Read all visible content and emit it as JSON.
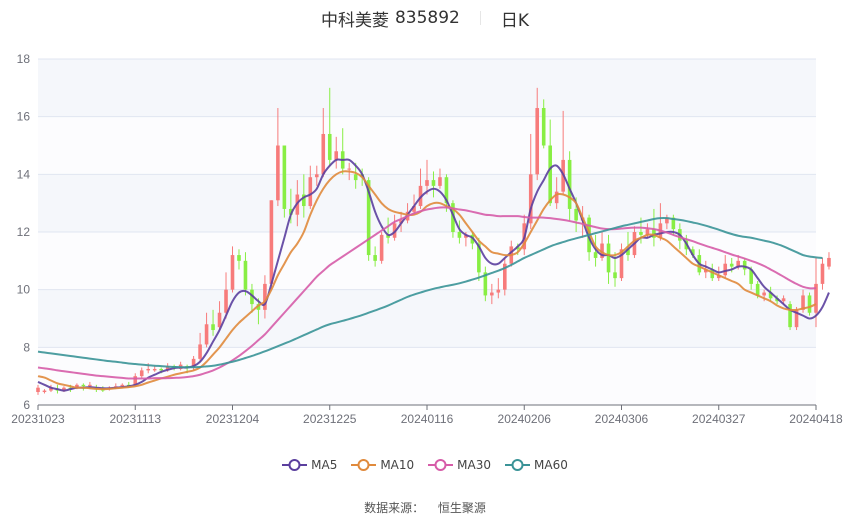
{
  "header": {
    "stock_name": "中科美菱",
    "stock_code": "835892",
    "period": "日K"
  },
  "legend": [
    {
      "name": "MA5",
      "color": "#5b3f9e"
    },
    {
      "name": "MA10",
      "color": "#e08a3c"
    },
    {
      "name": "MA30",
      "color": "#d65ca8"
    },
    {
      "name": "MA60",
      "color": "#3a9397"
    }
  ],
  "source": {
    "label": "数据来源：",
    "value": "恒生聚源"
  },
  "colors": {
    "up": "#f77b7b",
    "down": "#88ee44",
    "grid": "#e0e6f1",
    "band": "#f5f7fb",
    "axis": "#6e7079"
  },
  "chart_data": {
    "type": "candlestick",
    "title": "中科美菱 835892 日K",
    "xlabel": "",
    "ylabel": "",
    "ylim": [
      6,
      18
    ],
    "yticks": [
      6,
      8,
      10,
      12,
      14,
      16,
      18
    ],
    "xticks": [
      "20231023",
      "20231113",
      "20231204",
      "20231225",
      "20240116",
      "20240206",
      "20240306",
      "20240327",
      "20240418"
    ],
    "xtick_index": [
      0,
      15,
      30,
      45,
      60,
      75,
      90,
      105,
      120
    ],
    "grid": true,
    "legend_position": "bottom",
    "candles": [
      [
        6.45,
        6.6,
        6.35,
        6.7
      ],
      [
        6.45,
        6.5,
        6.4,
        6.55
      ],
      [
        6.5,
        6.6,
        6.45,
        6.7
      ],
      [
        6.55,
        6.5,
        6.4,
        6.7
      ],
      [
        6.5,
        6.6,
        6.45,
        6.65
      ],
      [
        6.6,
        6.55,
        6.45,
        6.7
      ],
      [
        6.6,
        6.7,
        6.55,
        6.75
      ],
      [
        6.7,
        6.65,
        6.5,
        6.75
      ],
      [
        6.65,
        6.7,
        6.55,
        6.8
      ],
      [
        6.6,
        6.55,
        6.45,
        6.7
      ],
      [
        6.55,
        6.5,
        6.45,
        6.65
      ],
      [
        6.55,
        6.6,
        6.5,
        6.65
      ],
      [
        6.6,
        6.65,
        6.55,
        6.75
      ],
      [
        6.65,
        6.7,
        6.6,
        6.75
      ],
      [
        6.7,
        6.65,
        6.6,
        6.8
      ],
      [
        6.7,
        7.0,
        6.65,
        7.1
      ],
      [
        7.0,
        7.2,
        6.95,
        7.3
      ],
      [
        7.2,
        7.25,
        7.1,
        7.45
      ],
      [
        7.2,
        7.25,
        7.15,
        7.35
      ],
      [
        7.25,
        7.2,
        7.1,
        7.3
      ],
      [
        7.2,
        7.35,
        7.15,
        7.45
      ],
      [
        7.35,
        7.3,
        7.2,
        7.4
      ],
      [
        7.25,
        7.4,
        7.2,
        7.5
      ],
      [
        7.35,
        7.3,
        7.1,
        7.4
      ],
      [
        7.3,
        7.6,
        7.2,
        7.7
      ],
      [
        7.6,
        8.1,
        7.5,
        8.5
      ],
      [
        8.1,
        8.8,
        8.0,
        9.2
      ],
      [
        8.8,
        8.6,
        8.4,
        9.3
      ],
      [
        8.7,
        9.2,
        8.6,
        9.6
      ],
      [
        9.2,
        10.0,
        9.0,
        10.6
      ],
      [
        10.0,
        11.2,
        9.9,
        11.5
      ],
      [
        11.2,
        11.0,
        10.7,
        11.4
      ],
      [
        11.0,
        10.0,
        9.8,
        11.3
      ],
      [
        10.0,
        9.5,
        9.2,
        10.2
      ],
      [
        9.5,
        9.3,
        8.8,
        9.7
      ],
      [
        9.3,
        10.2,
        9.0,
        10.5
      ],
      [
        10.2,
        13.1,
        10.0,
        13.1
      ],
      [
        13.1,
        15.0,
        12.9,
        16.3
      ],
      [
        15.0,
        12.8,
        12.5,
        15.0
      ],
      [
        12.8,
        12.6,
        12.3,
        13.5
      ],
      [
        12.6,
        13.3,
        12.2,
        13.8
      ],
      [
        13.3,
        12.9,
        12.5,
        14.0
      ],
      [
        12.9,
        13.9,
        12.8,
        14.3
      ],
      [
        13.9,
        14.0,
        13.6,
        14.3
      ],
      [
        14.0,
        15.4,
        13.9,
        16.3
      ],
      [
        15.4,
        14.5,
        14.3,
        17.0
      ],
      [
        14.5,
        14.8,
        14.2,
        15.3
      ],
      [
        14.8,
        14.2,
        14.0,
        15.6
      ],
      [
        14.2,
        14.2,
        13.8,
        14.4
      ],
      [
        14.0,
        13.8,
        13.5,
        14.4
      ],
      [
        14.0,
        13.9,
        13.6,
        14.2
      ],
      [
        13.8,
        11.2,
        11.0,
        13.9
      ],
      [
        11.2,
        11.0,
        10.8,
        11.5
      ],
      [
        11.0,
        11.9,
        10.9,
        12.0
      ],
      [
        11.9,
        11.8,
        11.6,
        12.5
      ],
      [
        11.8,
        12.3,
        11.7,
        12.6
      ],
      [
        12.3,
        12.4,
        12.0,
        12.7
      ],
      [
        12.4,
        12.7,
        12.3,
        13.0
      ],
      [
        12.7,
        12.9,
        12.6,
        13.3
      ],
      [
        12.9,
        13.6,
        12.8,
        14.2
      ],
      [
        13.6,
        13.8,
        13.3,
        14.5
      ],
      [
        13.8,
        13.6,
        13.2,
        14.1
      ],
      [
        13.6,
        13.9,
        13.5,
        14.2
      ],
      [
        13.9,
        13.0,
        12.7,
        14.0
      ],
      [
        13.0,
        12.0,
        11.8,
        13.1
      ],
      [
        12.0,
        11.8,
        11.6,
        12.4
      ],
      [
        11.8,
        11.9,
        11.5,
        12.0
      ],
      [
        11.9,
        11.6,
        11.4,
        12.0
      ],
      [
        11.6,
        10.6,
        10.3,
        11.8
      ],
      [
        10.6,
        9.8,
        9.6,
        10.8
      ],
      [
        9.8,
        9.9,
        9.5,
        10.2
      ],
      [
        9.9,
        10.0,
        9.7,
        10.4
      ],
      [
        10.0,
        10.9,
        9.8,
        11.1
      ],
      [
        10.9,
        11.5,
        10.8,
        11.7
      ],
      [
        11.5,
        11.4,
        11.2,
        11.6
      ],
      [
        11.4,
        12.3,
        11.2,
        12.6
      ],
      [
        12.3,
        14.0,
        12.1,
        15.4
      ],
      [
        14.0,
        16.3,
        13.8,
        17.0
      ],
      [
        16.3,
        15.0,
        14.9,
        16.6
      ],
      [
        15.0,
        13.0,
        12.9,
        15.9
      ],
      [
        13.0,
        13.4,
        12.8,
        13.9
      ],
      [
        13.4,
        14.5,
        13.3,
        16.2
      ],
      [
        14.5,
        12.8,
        12.4,
        14.8
      ],
      [
        12.8,
        12.4,
        12.0,
        13.2
      ],
      [
        12.4,
        12.5,
        11.8,
        12.9
      ],
      [
        12.5,
        11.3,
        11.0,
        12.6
      ],
      [
        11.3,
        11.1,
        10.8,
        11.9
      ],
      [
        11.1,
        11.6,
        11.0,
        12.0
      ],
      [
        11.6,
        10.6,
        10.2,
        11.9
      ],
      [
        10.6,
        10.4,
        10.1,
        11.3
      ],
      [
        10.4,
        11.4,
        10.3,
        11.6
      ],
      [
        11.4,
        11.2,
        11.0,
        12.0
      ],
      [
        11.2,
        12.0,
        11.1,
        12.2
      ],
      [
        12.0,
        11.9,
        11.6,
        12.5
      ],
      [
        11.9,
        12.1,
        11.8,
        12.3
      ],
      [
        12.1,
        11.8,
        11.5,
        12.8
      ],
      [
        11.8,
        12.3,
        11.7,
        13.0
      ],
      [
        12.3,
        12.5,
        12.1,
        12.6
      ],
      [
        12.5,
        12.1,
        11.9,
        12.6
      ],
      [
        12.1,
        11.7,
        11.4,
        12.3
      ],
      [
        11.7,
        11.4,
        11.2,
        11.9
      ],
      [
        11.4,
        11.2,
        11.1,
        11.5
      ],
      [
        11.2,
        10.6,
        10.5,
        11.4
      ],
      [
        10.6,
        10.7,
        10.4,
        11.0
      ],
      [
        10.7,
        10.4,
        10.3,
        10.9
      ],
      [
        10.4,
        10.5,
        10.3,
        10.8
      ],
      [
        10.5,
        10.9,
        10.4,
        11.2
      ],
      [
        10.9,
        10.8,
        10.6,
        11.1
      ],
      [
        10.8,
        11.0,
        10.7,
        11.2
      ],
      [
        11.0,
        10.7,
        10.5,
        11.1
      ],
      [
        10.7,
        10.2,
        10.0,
        10.8
      ],
      [
        10.2,
        9.8,
        9.7,
        10.3
      ],
      [
        9.8,
        9.9,
        9.6,
        10.0
      ],
      [
        9.9,
        9.7,
        9.6,
        10.1
      ],
      [
        9.7,
        9.6,
        9.5,
        9.8
      ],
      [
        9.6,
        9.7,
        9.5,
        9.8
      ],
      [
        9.5,
        8.7,
        8.6,
        9.6
      ],
      [
        8.7,
        9.3,
        8.6,
        9.4
      ],
      [
        9.3,
        9.8,
        9.2,
        10.0
      ],
      [
        9.8,
        9.2,
        9.1,
        9.9
      ],
      [
        9.2,
        10.2,
        8.7,
        11.1
      ],
      [
        10.2,
        10.9,
        10.0,
        11.1
      ],
      [
        10.8,
        11.1,
        10.7,
        11.3
      ]
    ],
    "series": [
      {
        "name": "MA5",
        "values": [
          6.8,
          6.7,
          6.6,
          6.55,
          6.5,
          6.55,
          6.6,
          6.6,
          6.62,
          6.6,
          6.58,
          6.58,
          6.6,
          6.62,
          6.65,
          6.7,
          6.8,
          6.95,
          7.05,
          7.15,
          7.22,
          7.28,
          7.3,
          7.3,
          7.35,
          7.5,
          7.8,
          8.2,
          8.6,
          9.1,
          9.6,
          9.9,
          9.95,
          9.8,
          9.6,
          9.5,
          10.2,
          11.0,
          11.8,
          12.6,
          13.0,
          13.2,
          13.3,
          13.5,
          14.0,
          14.3,
          14.5,
          14.5,
          14.5,
          14.3,
          14.0,
          13.4,
          12.7,
          12.2,
          11.9,
          12.0,
          12.3,
          12.6,
          12.9,
          13.2,
          13.4,
          13.5,
          13.4,
          13.1,
          12.6,
          12.1,
          11.9,
          11.8,
          11.5,
          11.1,
          10.9,
          10.9,
          11.1,
          11.3,
          11.5,
          11.8,
          12.8,
          13.4,
          13.8,
          14.2,
          14.3,
          14.0,
          13.5,
          13.0,
          12.4,
          11.8,
          11.4,
          11.2,
          11.2,
          11.1,
          11.2,
          11.4,
          11.6,
          11.8,
          11.8,
          11.9,
          11.95,
          12.0,
          12.0,
          11.9,
          11.6,
          11.2,
          10.9,
          10.8,
          10.7,
          10.6,
          10.65,
          10.7,
          10.8,
          10.8,
          10.7,
          10.4,
          10.1,
          9.9,
          9.7,
          9.5,
          9.3,
          9.2,
          9.1,
          9.0,
          9.1,
          9.4,
          9.9
        ]
      },
      {
        "name": "MA10",
        "values": [
          7.0,
          6.95,
          6.85,
          6.75,
          6.7,
          6.65,
          6.6,
          6.6,
          6.58,
          6.56,
          6.55,
          6.56,
          6.58,
          6.6,
          6.62,
          6.65,
          6.7,
          6.78,
          6.85,
          6.92,
          6.98,
          7.05,
          7.1,
          7.15,
          7.2,
          7.3,
          7.5,
          7.75,
          8.0,
          8.3,
          8.6,
          8.85,
          9.05,
          9.25,
          9.45,
          9.6,
          10.0,
          10.5,
          10.9,
          11.3,
          11.6,
          12.0,
          12.6,
          13.1,
          13.5,
          13.8,
          14.0,
          14.1,
          14.1,
          14.05,
          13.9,
          13.6,
          13.3,
          13.0,
          12.8,
          12.7,
          12.65,
          12.6,
          12.6,
          12.7,
          12.9,
          13.0,
          13.0,
          12.9,
          12.8,
          12.6,
          12.3,
          12.0,
          11.7,
          11.5,
          11.3,
          11.25,
          11.2,
          11.2,
          11.3,
          11.6,
          12.0,
          12.4,
          12.8,
          13.1,
          13.3,
          13.3,
          13.2,
          13.0,
          12.5,
          12.0,
          11.5,
          11.3,
          11.2,
          11.2,
          11.3,
          11.5,
          11.7,
          11.8,
          11.9,
          11.9,
          11.8,
          11.7,
          11.5,
          11.3,
          11.1,
          10.9,
          10.8,
          10.7,
          10.6,
          10.5,
          10.4,
          10.3,
          10.2,
          10.0,
          9.9,
          9.8,
          9.7,
          9.6,
          9.45,
          9.35,
          9.3,
          9.3,
          9.35,
          9.4,
          9.5
        ]
      },
      {
        "name": "MA30",
        "values": [
          7.3,
          7.27,
          7.24,
          7.2,
          7.17,
          7.14,
          7.11,
          7.08,
          7.05,
          7.02,
          7.0,
          6.98,
          6.96,
          6.94,
          6.92,
          6.92,
          6.92,
          6.92,
          6.93,
          6.93,
          6.93,
          6.94,
          6.95,
          6.97,
          7.0,
          7.05,
          7.12,
          7.2,
          7.3,
          7.42,
          7.55,
          7.7,
          7.87,
          8.05,
          8.25,
          8.45,
          8.7,
          8.95,
          9.2,
          9.45,
          9.7,
          9.95,
          10.2,
          10.45,
          10.65,
          10.85,
          11.0,
          11.15,
          11.3,
          11.45,
          11.6,
          11.75,
          11.9,
          12.05,
          12.2,
          12.35,
          12.45,
          12.55,
          12.65,
          12.72,
          12.78,
          12.82,
          12.85,
          12.85,
          12.82,
          12.78,
          12.75,
          12.7,
          12.65,
          12.6,
          12.58,
          12.55,
          12.55,
          12.55,
          12.55,
          12.52,
          12.5,
          12.5,
          12.5,
          12.48,
          12.45,
          12.42,
          12.38,
          12.33,
          12.28,
          12.22,
          12.17,
          12.12,
          12.1,
          12.1,
          12.12,
          12.14,
          12.15,
          12.15,
          12.13,
          12.1,
          12.05,
          11.98,
          11.9,
          11.82,
          11.75,
          11.68,
          11.6,
          11.52,
          11.45,
          11.38,
          11.3,
          11.22,
          11.15,
          11.08,
          11.0,
          10.92,
          10.82,
          10.7,
          10.58,
          10.45,
          10.32,
          10.2,
          10.1,
          10.05,
          10.05
        ]
      },
      {
        "name": "MA60",
        "values": [
          7.85,
          7.82,
          7.79,
          7.76,
          7.73,
          7.7,
          7.67,
          7.64,
          7.61,
          7.58,
          7.55,
          7.52,
          7.5,
          7.47,
          7.44,
          7.42,
          7.4,
          7.38,
          7.36,
          7.35,
          7.33,
          7.32,
          7.31,
          7.31,
          7.31,
          7.32,
          7.34,
          7.36,
          7.4,
          7.45,
          7.5,
          7.56,
          7.63,
          7.7,
          7.78,
          7.86,
          7.95,
          8.04,
          8.13,
          8.22,
          8.32,
          8.42,
          8.52,
          8.62,
          8.72,
          8.8,
          8.86,
          8.92,
          8.98,
          9.05,
          9.12,
          9.2,
          9.28,
          9.36,
          9.45,
          9.55,
          9.65,
          9.75,
          9.83,
          9.9,
          9.97,
          10.03,
          10.08,
          10.13,
          10.17,
          10.22,
          10.28,
          10.35,
          10.42,
          10.5,
          10.58,
          10.66,
          10.75,
          10.86,
          10.98,
          11.1,
          11.2,
          11.3,
          11.4,
          11.5,
          11.58,
          11.65,
          11.72,
          11.78,
          11.84,
          11.9,
          11.96,
          12.02,
          12.08,
          12.14,
          12.2,
          12.25,
          12.3,
          12.35,
          12.4,
          12.45,
          12.48,
          12.48,
          12.45,
          12.42,
          12.38,
          12.33,
          12.28,
          12.22,
          12.15,
          12.08,
          12.0,
          11.93,
          11.87,
          11.83,
          11.8,
          11.75,
          11.7,
          11.65,
          11.58,
          11.5,
          11.4,
          11.3,
          11.2,
          11.15,
          11.12,
          11.1
        ]
      }
    ]
  }
}
